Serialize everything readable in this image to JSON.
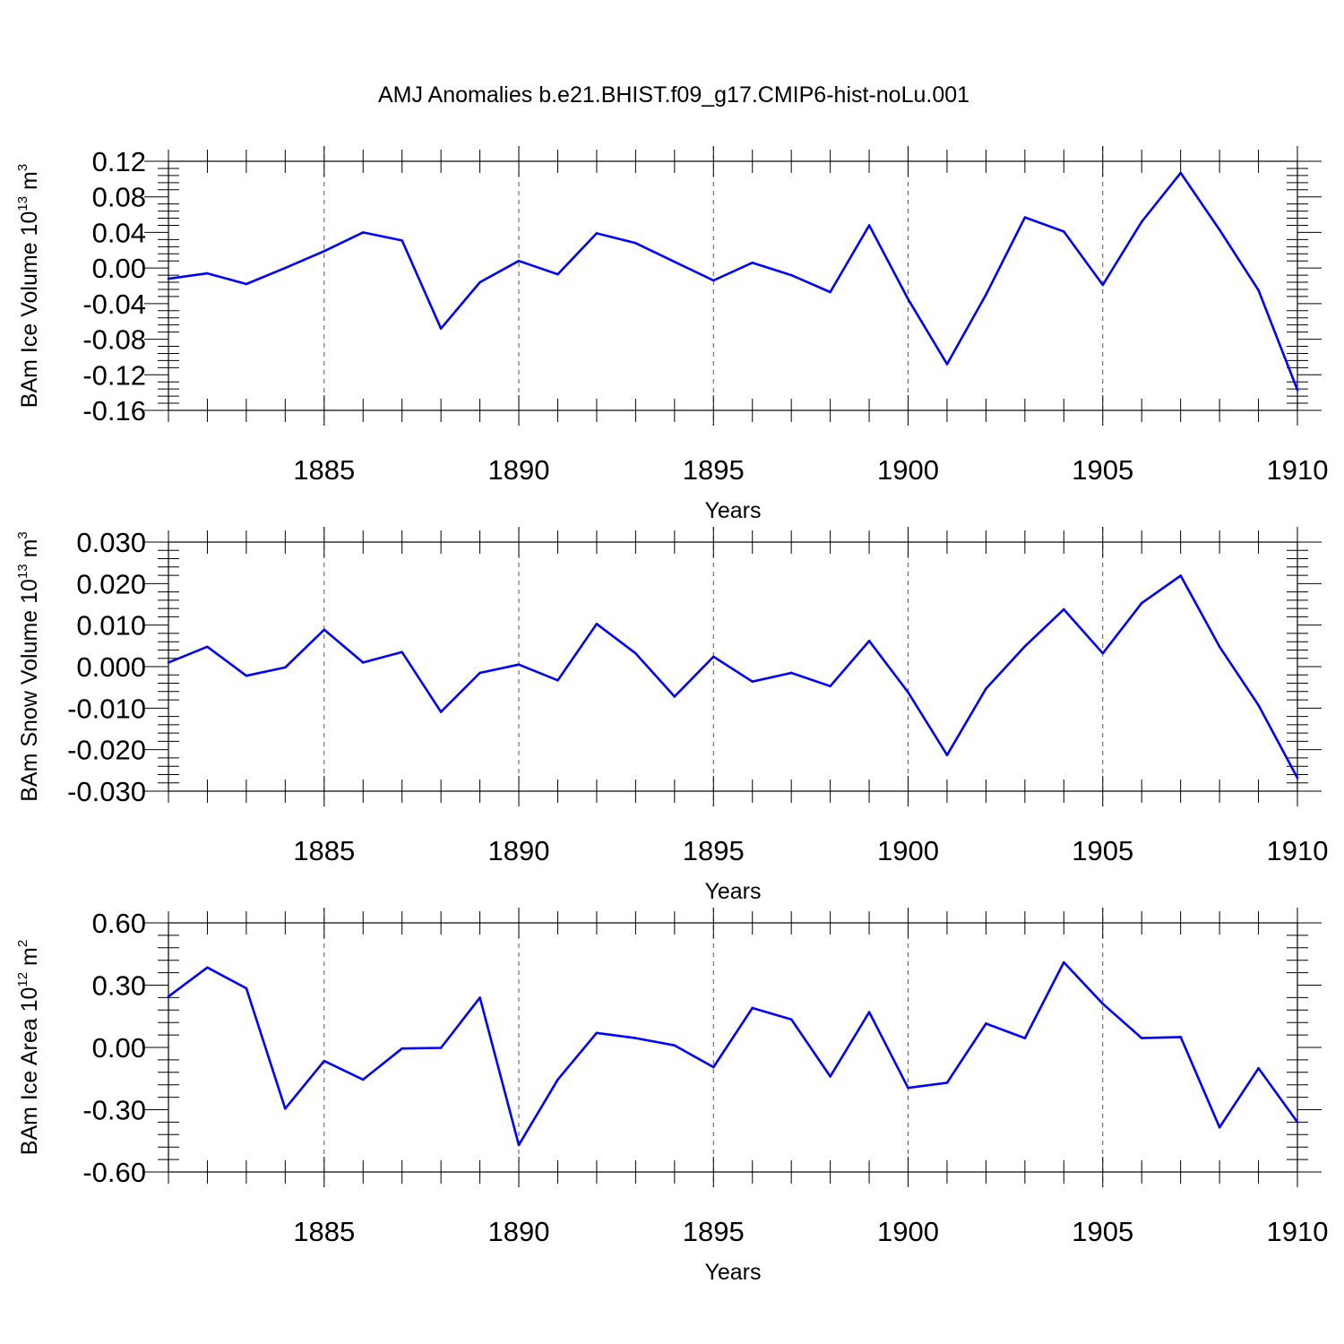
{
  "title": "AMJ Anomalies b.e21.BHIST.f09_g17.CMIP6-hist-noLu.001",
  "line_color": "#0000ff",
  "chart_data": [
    {
      "type": "line",
      "xlabel": "Years",
      "ylabel_parts": [
        "BAm Ice Volume 10",
        "13",
        " m",
        "3"
      ],
      "xlim": [
        1881,
        1910
      ],
      "ylim": [
        -0.16,
        0.12
      ],
      "yticks": [
        0.12,
        0.08,
        0.04,
        0.0,
        -0.04,
        -0.08,
        -0.12,
        -0.16
      ],
      "ytick_labels": [
        "0.12",
        "0.08",
        "0.04",
        "0.00",
        "-0.04",
        "-0.08",
        "-0.12",
        "-0.16"
      ],
      "xticks": [
        1885,
        1890,
        1895,
        1900,
        1905,
        1910
      ],
      "xtick_labels": [
        "1885",
        "1890",
        "1895",
        "1900",
        "1905",
        "1910"
      ],
      "grid": "vertical dashed at major x ticks",
      "x": [
        1881,
        1882,
        1883,
        1884,
        1885,
        1886,
        1887,
        1888,
        1889,
        1890,
        1891,
        1892,
        1893,
        1894,
        1895,
        1896,
        1897,
        1898,
        1899,
        1900,
        1901,
        1902,
        1903,
        1904,
        1905,
        1906,
        1907,
        1908,
        1909,
        1910
      ],
      "values": [
        -0.012,
        -0.006,
        -0.018,
        0.0,
        0.019,
        0.04,
        0.031,
        -0.068,
        -0.016,
        0.008,
        -0.007,
        0.039,
        0.028,
        0.007,
        -0.014,
        0.006,
        -0.008,
        -0.027,
        0.048,
        -0.035,
        -0.108,
        -0.03,
        0.057,
        0.041,
        -0.019,
        0.052,
        0.107,
        0.043,
        -0.025,
        -0.137
      ]
    },
    {
      "type": "line",
      "xlabel": "Years",
      "ylabel_parts": [
        "BAm Snow Volume 10",
        "13",
        " m",
        "3"
      ],
      "xlim": [
        1881,
        1910
      ],
      "ylim": [
        -0.03,
        0.03
      ],
      "yticks": [
        0.03,
        0.02,
        0.01,
        0.0,
        -0.01,
        -0.02,
        -0.03
      ],
      "ytick_labels": [
        "0.030",
        "0.020",
        "0.010",
        "0.000",
        "-0.010",
        "-0.020",
        "-0.030"
      ],
      "xticks": [
        1885,
        1890,
        1895,
        1900,
        1905,
        1910
      ],
      "xtick_labels": [
        "1885",
        "1890",
        "1895",
        "1900",
        "1905",
        "1910"
      ],
      "grid": "vertical dashed at major x ticks",
      "x": [
        1881,
        1882,
        1883,
        1884,
        1885,
        1886,
        1887,
        1888,
        1889,
        1890,
        1891,
        1892,
        1893,
        1894,
        1895,
        1896,
        1897,
        1898,
        1899,
        1900,
        1901,
        1902,
        1903,
        1904,
        1905,
        1906,
        1907,
        1908,
        1909,
        1910
      ],
      "values": [
        0.001,
        0.0048,
        -0.0022,
        -0.0002,
        0.0089,
        0.001,
        0.0035,
        -0.0109,
        -0.0015,
        0.0005,
        -0.0033,
        0.0103,
        0.0032,
        -0.0072,
        0.0024,
        -0.0036,
        -0.0015,
        -0.0047,
        0.0062,
        -0.0062,
        -0.0213,
        -0.0053,
        0.0049,
        0.0138,
        0.0032,
        0.0153,
        0.0219,
        0.0048,
        -0.0093,
        -0.0268
      ]
    },
    {
      "type": "line",
      "xlabel": "Years",
      "ylabel_parts": [
        "BAm Ice Area 10",
        "12",
        " m",
        "2"
      ],
      "xlim": [
        1881,
        1910
      ],
      "ylim": [
        -0.6,
        0.6
      ],
      "yticks": [
        0.6,
        0.3,
        0.0,
        -0.3,
        -0.6
      ],
      "ytick_labels": [
        "0.60",
        "0.30",
        "0.00",
        "-0.30",
        "-0.60"
      ],
      "xticks": [
        1885,
        1890,
        1895,
        1900,
        1905,
        1910
      ],
      "xtick_labels": [
        "1885",
        "1890",
        "1895",
        "1900",
        "1905",
        "1910"
      ],
      "grid": "vertical dashed at major x ticks",
      "x": [
        1881,
        1882,
        1883,
        1884,
        1885,
        1886,
        1887,
        1888,
        1889,
        1890,
        1891,
        1892,
        1893,
        1894,
        1895,
        1896,
        1897,
        1898,
        1899,
        1900,
        1901,
        1902,
        1903,
        1904,
        1905,
        1906,
        1907,
        1908,
        1909,
        1910
      ],
      "values": [
        0.245,
        0.385,
        0.285,
        -0.295,
        -0.065,
        -0.155,
        -0.005,
        -0.002,
        0.24,
        -0.47,
        -0.155,
        0.07,
        0.045,
        0.01,
        -0.095,
        0.19,
        0.135,
        -0.14,
        0.17,
        -0.195,
        -0.17,
        0.115,
        0.045,
        0.41,
        0.21,
        0.045,
        0.05,
        -0.385,
        -0.1,
        -0.36
      ]
    }
  ]
}
